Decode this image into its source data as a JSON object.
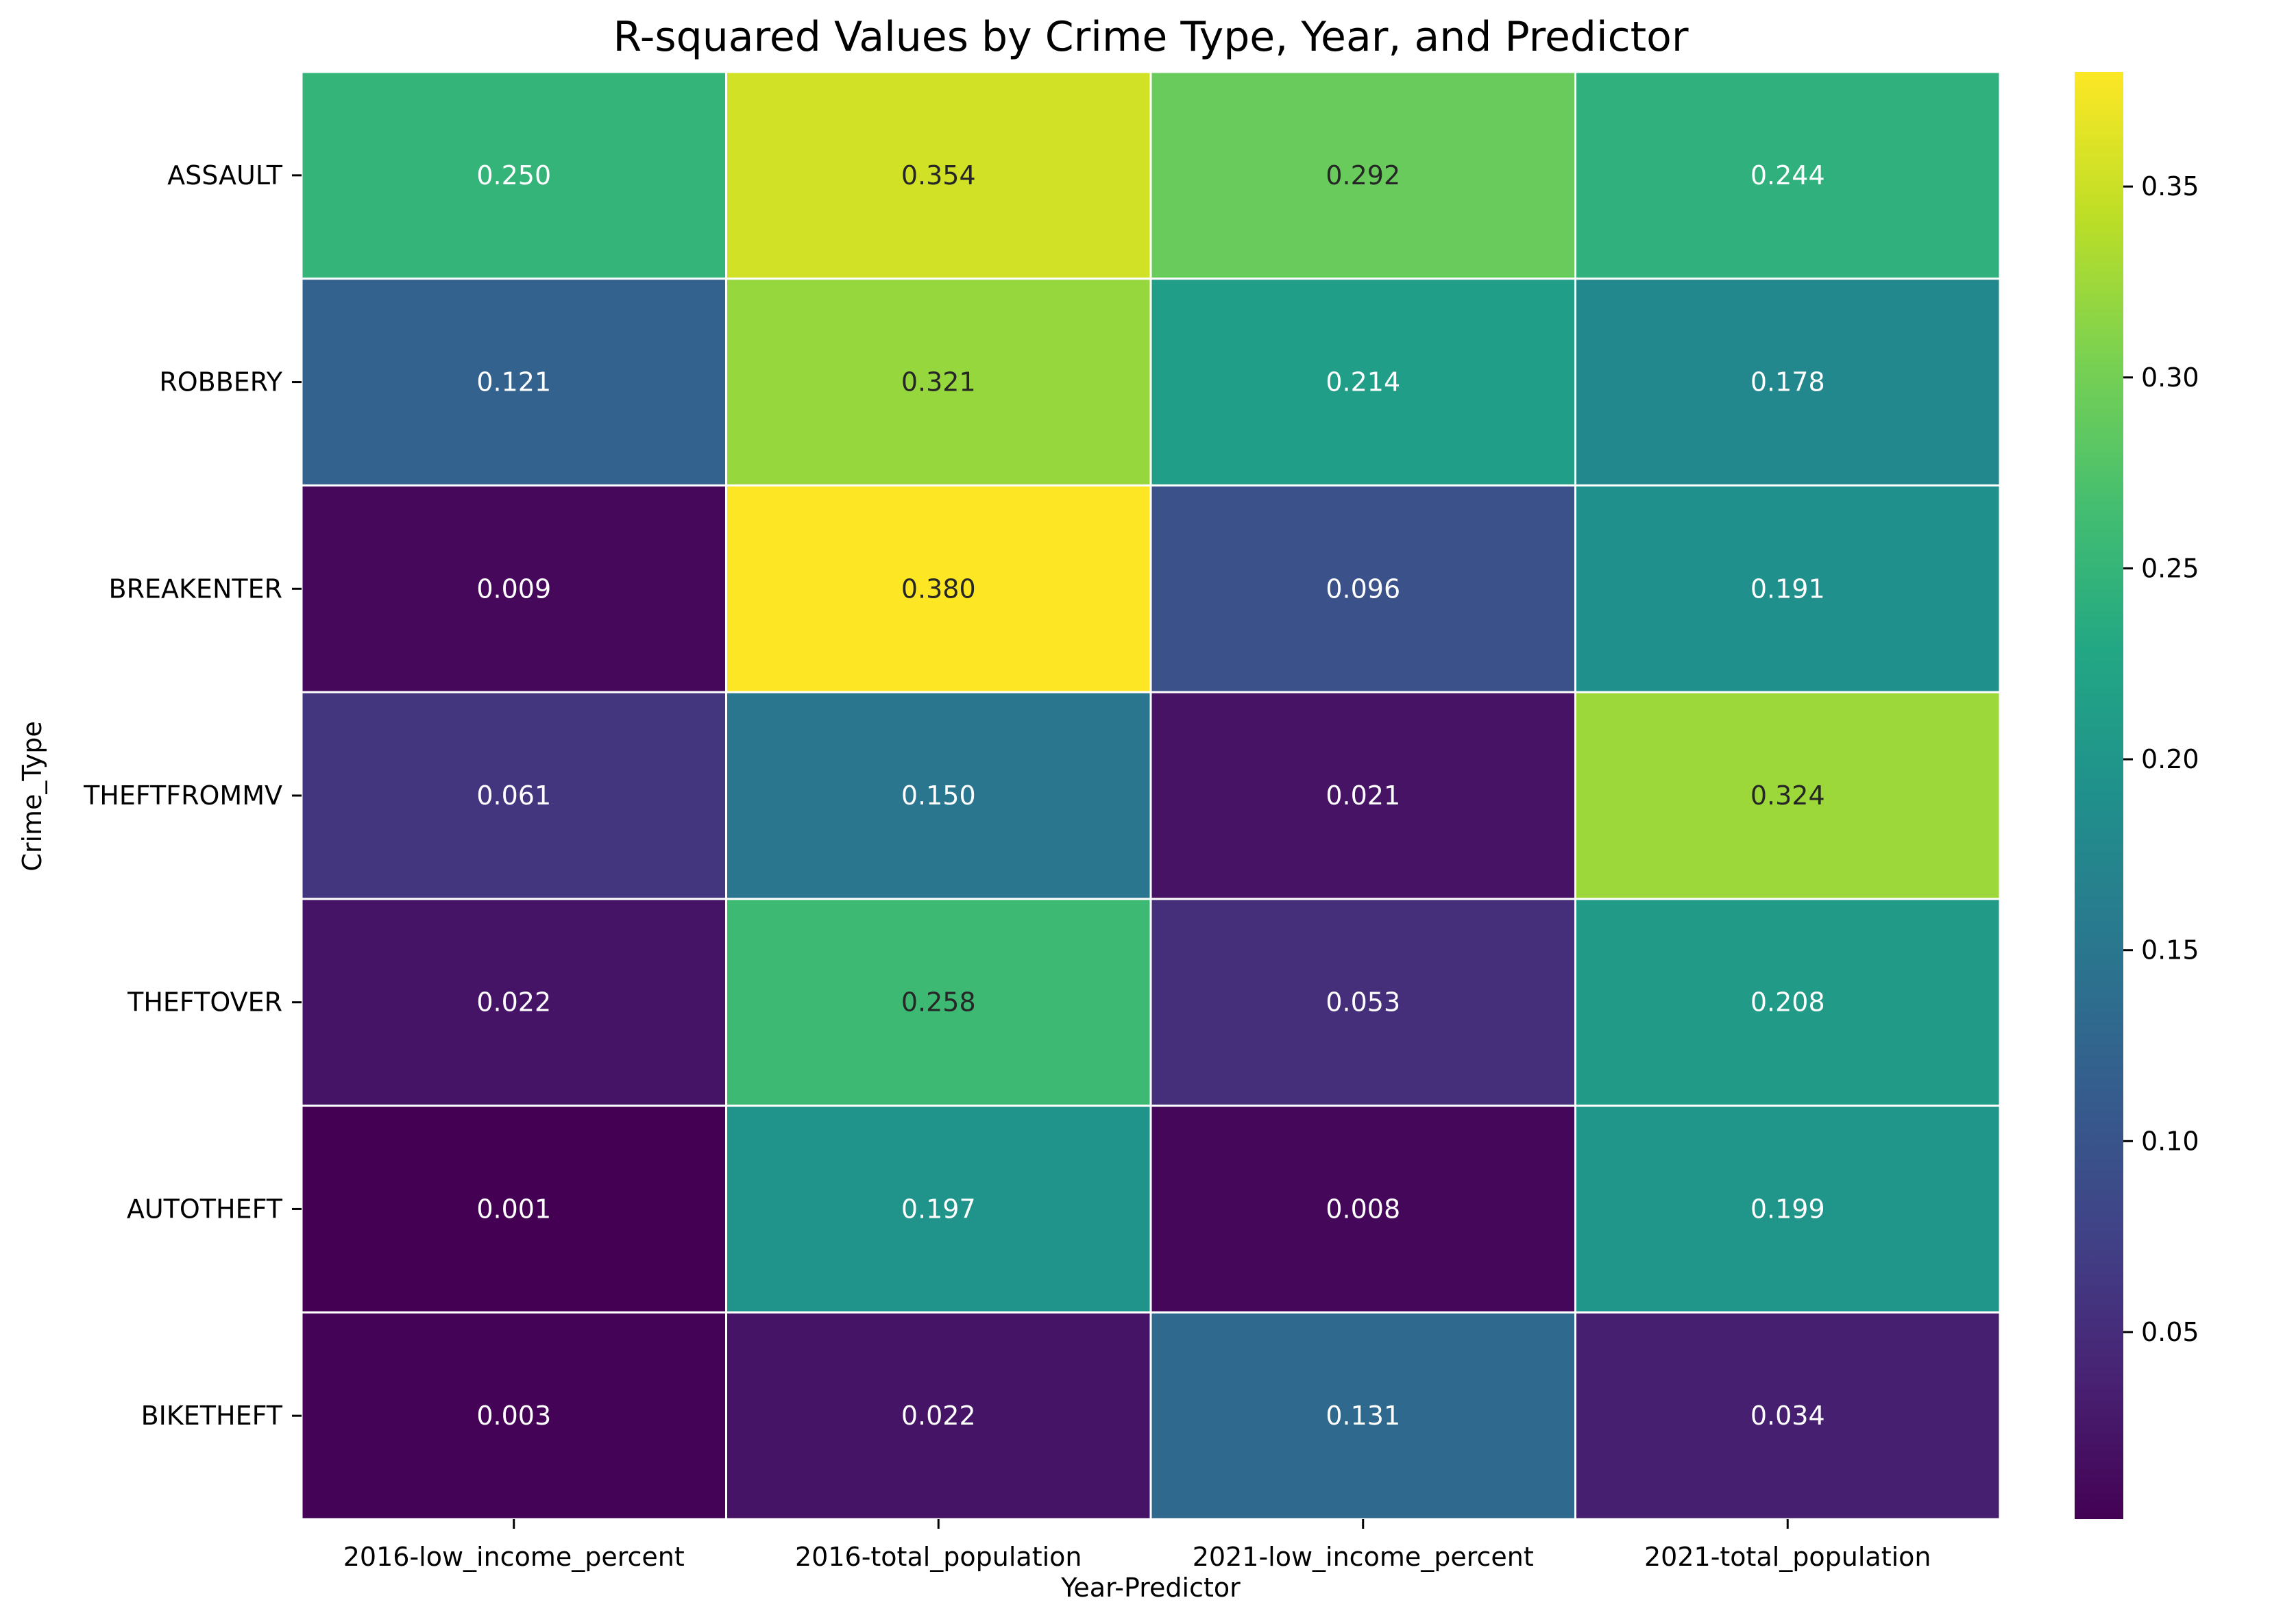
{
  "chart_data": {
    "type": "heatmap",
    "title": "R-squared Values by Crime Type, Year, and Predictor",
    "xlabel": "Year-Predictor",
    "ylabel": "Crime_Type",
    "columns": [
      "2016-low_income_percent",
      "2016-total_population",
      "2021-low_income_percent",
      "2021-total_population"
    ],
    "rows": [
      "ASSAULT",
      "ROBBERY",
      "BREAKENTER",
      "THEFTFROMMV",
      "THEFTOVER",
      "AUTOTHEFT",
      "BIKETHEFT"
    ],
    "values": [
      [
        0.25,
        0.354,
        0.292,
        0.244
      ],
      [
        0.121,
        0.321,
        0.214,
        0.178
      ],
      [
        0.009,
        0.38,
        0.096,
        0.191
      ],
      [
        0.061,
        0.15,
        0.021,
        0.324
      ],
      [
        0.022,
        0.258,
        0.053,
        0.208
      ],
      [
        0.001,
        0.197,
        0.008,
        0.199
      ],
      [
        0.003,
        0.022,
        0.131,
        0.034
      ]
    ],
    "value_format": "0.000",
    "colormap": "viridis",
    "vmin": 0.001,
    "vmax": 0.38,
    "colorbar_ticks": [
      0.05,
      0.1,
      0.15,
      0.2,
      0.25,
      0.3,
      0.35
    ],
    "colorbar_tick_labels": [
      "0.05",
      "0.10",
      "0.15",
      "0.20",
      "0.25",
      "0.30",
      "0.35"
    ],
    "grid": false,
    "cell_separator_color": "#ffffff"
  }
}
